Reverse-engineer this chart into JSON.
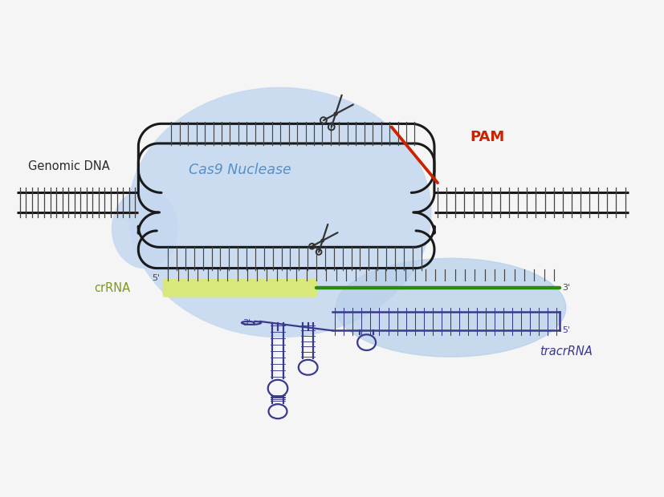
{
  "bg_color": "#f5f5f5",
  "cas9_blob_color": "#c5d8f0",
  "cas9_blob_alpha": 0.85,
  "tracr_blob_color": "#b8d0ea",
  "tracr_blob_alpha": 0.75,
  "dna_strand_color": "#1a1a1a",
  "pam_color": "#cc2200",
  "dna_hatch_color": "#444444",
  "crrna_color": "#d8e87a",
  "guide_color": "#2a8b10",
  "tracr_color": "#3a3a8c",
  "scissor_color": "#333333",
  "label_genomic": "Genomic DNA",
  "label_cas9": "Cas9 Nuclease",
  "label_pam": "PAM",
  "label_crrna": "crRNA",
  "label_tracr": "tracrRNA",
  "fig_width": 8.28,
  "fig_height": 6.2,
  "dpi": 100
}
